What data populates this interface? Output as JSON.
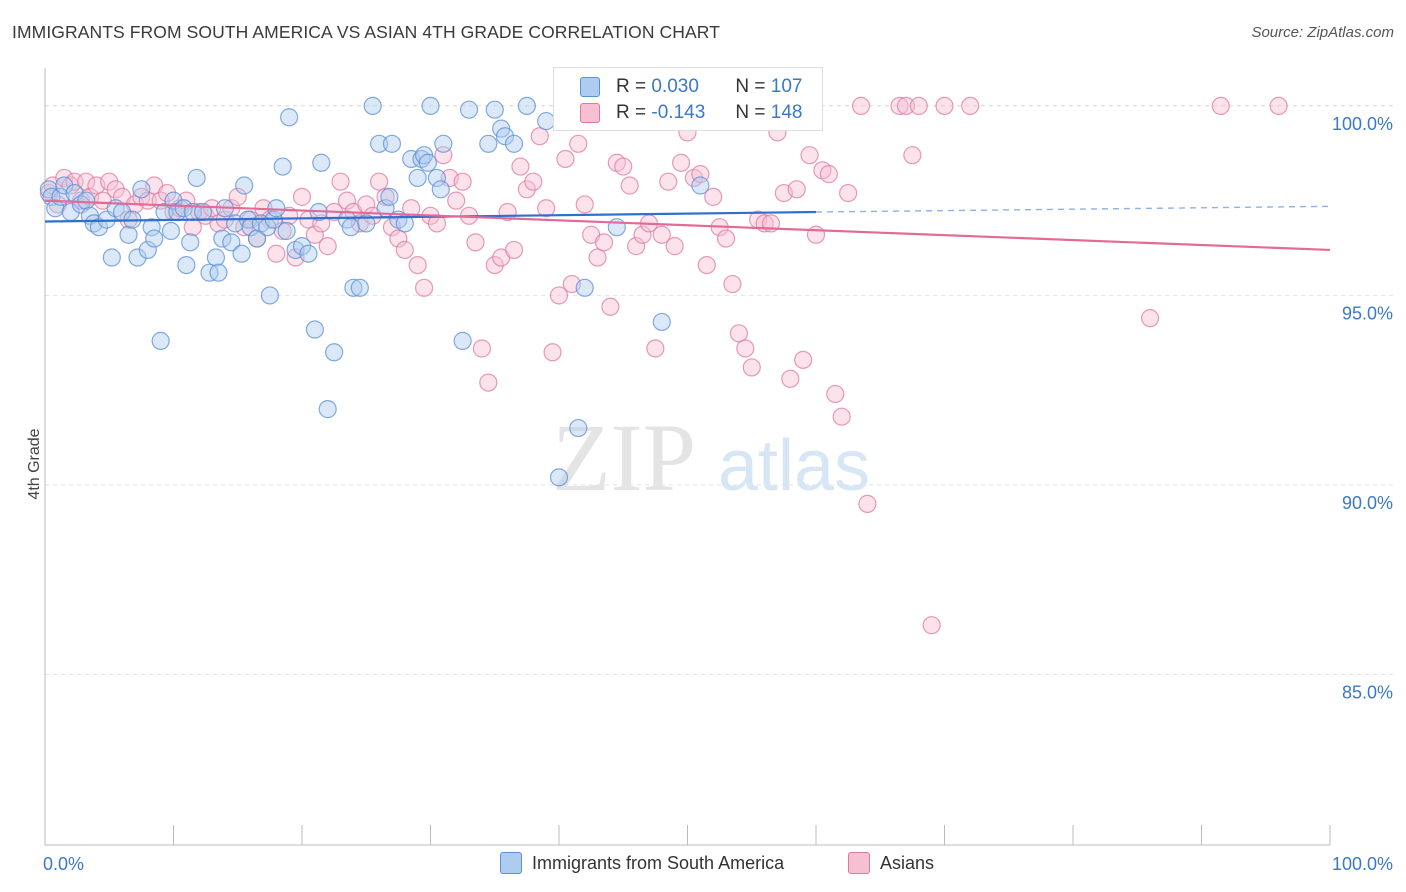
{
  "title": "IMMIGRANTS FROM SOUTH AMERICA VS ASIAN 4TH GRADE CORRELATION CHART",
  "source": "Source: ZipAtlas.com",
  "legend_top": {
    "rows": [
      {
        "r_label": "R =",
        "r_value": "0.030",
        "n_label": "N =",
        "n_value": "107",
        "color": "#5b8fd6",
        "fill": "#aecbf0"
      },
      {
        "r_label": "R =",
        "r_value": "-0.143",
        "n_label": "N =",
        "n_value": "148",
        "color": "#e07aa0",
        "fill": "#f6bfd2"
      }
    ]
  },
  "legend_bottom": [
    "Immigrants from South America",
    "Asians"
  ],
  "watermark": {
    "zip": "ZIP",
    "atlas": "atlas"
  },
  "chart_data": {
    "type": "scatter",
    "xlabel": "",
    "ylabel": "4th Grade",
    "xlim": [
      0,
      100
    ],
    "ylim": [
      80.5,
      101.0
    ],
    "x_tick_labels": [
      "0.0%",
      "100.0%"
    ],
    "y_ticks": [
      85.0,
      90.0,
      95.0,
      100.0
    ],
    "y_tick_labels": [
      "85.0%",
      "90.0%",
      "95.0%",
      "100.0%"
    ],
    "grid": true,
    "series": [
      {
        "name": "Immigrants from South America",
        "color": "#5b8fd6",
        "fill": "#aecbf0",
        "trend": {
          "x0": 0,
          "y0": 96.95,
          "x1": 60,
          "y1": 97.2,
          "dash_x1": 100,
          "dash_y1": 97.35
        },
        "points": [
          [
            0.3,
            97.8
          ],
          [
            0.5,
            97.6
          ],
          [
            0.8,
            97.3
          ],
          [
            1.2,
            97.6
          ],
          [
            1.5,
            97.9
          ],
          [
            2.0,
            97.2
          ],
          [
            2.3,
            97.7
          ],
          [
            2.8,
            97.4
          ],
          [
            3.2,
            97.5
          ],
          [
            3.5,
            97.1
          ],
          [
            3.8,
            96.9
          ],
          [
            4.2,
            96.8
          ],
          [
            4.8,
            97.0
          ],
          [
            5.2,
            96.0
          ],
          [
            5.5,
            97.3
          ],
          [
            6.0,
            97.2
          ],
          [
            6.5,
            96.6
          ],
          [
            6.8,
            97.0
          ],
          [
            7.2,
            96.0
          ],
          [
            7.5,
            97.8
          ],
          [
            8.0,
            96.2
          ],
          [
            8.3,
            96.8
          ],
          [
            8.5,
            96.5
          ],
          [
            9.0,
            93.8
          ],
          [
            9.3,
            97.2
          ],
          [
            9.8,
            96.7
          ],
          [
            10.0,
            97.5
          ],
          [
            10.3,
            97.2
          ],
          [
            10.8,
            97.3
          ],
          [
            11.0,
            95.8
          ],
          [
            11.3,
            96.4
          ],
          [
            11.5,
            97.2
          ],
          [
            11.8,
            98.1
          ],
          [
            12.3,
            97.2
          ],
          [
            12.8,
            95.6
          ],
          [
            13.3,
            96.0
          ],
          [
            13.5,
            95.6
          ],
          [
            13.8,
            96.5
          ],
          [
            14.0,
            97.3
          ],
          [
            14.5,
            96.4
          ],
          [
            14.8,
            96.9
          ],
          [
            15.3,
            96.1
          ],
          [
            15.5,
            97.9
          ],
          [
            15.8,
            97.0
          ],
          [
            16.0,
            96.8
          ],
          [
            16.5,
            96.5
          ],
          [
            16.8,
            96.9
          ],
          [
            17.3,
            96.8
          ],
          [
            17.5,
            95.0
          ],
          [
            17.8,
            97.0
          ],
          [
            18.0,
            97.3
          ],
          [
            18.5,
            98.4
          ],
          [
            18.8,
            96.7
          ],
          [
            19.0,
            99.7
          ],
          [
            19.5,
            96.2
          ],
          [
            20.0,
            96.3
          ],
          [
            20.5,
            96.1
          ],
          [
            21.0,
            94.1
          ],
          [
            21.3,
            97.2
          ],
          [
            21.5,
            98.5
          ],
          [
            22.0,
            92.0
          ],
          [
            22.5,
            93.5
          ],
          [
            23.5,
            97.0
          ],
          [
            23.8,
            96.8
          ],
          [
            24.0,
            95.2
          ],
          [
            24.5,
            95.2
          ],
          [
            25.0,
            96.9
          ],
          [
            25.5,
            100.0
          ],
          [
            26.0,
            99.0
          ],
          [
            26.5,
            97.3
          ],
          [
            26.8,
            97.6
          ],
          [
            27.0,
            99.0
          ],
          [
            27.5,
            97.0
          ],
          [
            28.0,
            96.9
          ],
          [
            28.5,
            98.6
          ],
          [
            29.0,
            98.1
          ],
          [
            29.3,
            98.6
          ],
          [
            29.5,
            98.7
          ],
          [
            29.8,
            98.5
          ],
          [
            30.0,
            100.0
          ],
          [
            30.5,
            98.1
          ],
          [
            30.8,
            97.8
          ],
          [
            31.0,
            99.0
          ],
          [
            32.5,
            93.8
          ],
          [
            33.0,
            99.9
          ],
          [
            34.5,
            99.0
          ],
          [
            35.0,
            99.9
          ],
          [
            35.5,
            99.4
          ],
          [
            35.8,
            99.2
          ],
          [
            36.5,
            99.0
          ],
          [
            37.5,
            100.0
          ],
          [
            39.0,
            99.6
          ],
          [
            40.0,
            90.2
          ],
          [
            41.5,
            91.5
          ],
          [
            42.0,
            95.2
          ],
          [
            44.5,
            96.8
          ],
          [
            48.0,
            94.3
          ],
          [
            51.0,
            97.9
          ]
        ]
      },
      {
        "name": "Asians",
        "color": "#e07aa0",
        "fill": "#f6bfd2",
        "trend": {
          "x0": 0,
          "y0": 97.5,
          "x1": 100,
          "y1": 96.2
        },
        "points": [
          [
            0.3,
            97.7
          ],
          [
            0.6,
            97.9
          ],
          [
            1.0,
            97.4
          ],
          [
            1.5,
            98.1
          ],
          [
            2.0,
            97.9
          ],
          [
            2.3,
            98.0
          ],
          [
            2.8,
            97.5
          ],
          [
            3.2,
            98.0
          ],
          [
            3.5,
            97.6
          ],
          [
            4.0,
            97.9
          ],
          [
            4.5,
            97.5
          ],
          [
            5.0,
            98.0
          ],
          [
            5.5,
            97.8
          ],
          [
            6.0,
            97.6
          ],
          [
            6.5,
            97.0
          ],
          [
            7.0,
            97.4
          ],
          [
            7.5,
            97.6
          ],
          [
            8.0,
            97.5
          ],
          [
            8.5,
            97.9
          ],
          [
            9.0,
            97.5
          ],
          [
            9.5,
            97.7
          ],
          [
            10.0,
            97.2
          ],
          [
            10.5,
            97.3
          ],
          [
            11.0,
            97.5
          ],
          [
            11.5,
            96.8
          ],
          [
            12.0,
            97.2
          ],
          [
            12.5,
            97.1
          ],
          [
            13.0,
            97.3
          ],
          [
            13.5,
            96.9
          ],
          [
            14.0,
            97.0
          ],
          [
            14.5,
            97.3
          ],
          [
            15.0,
            97.6
          ],
          [
            15.5,
            96.8
          ],
          [
            16.0,
            97.0
          ],
          [
            16.5,
            96.5
          ],
          [
            17.0,
            97.3
          ],
          [
            17.5,
            97.0
          ],
          [
            18.0,
            96.1
          ],
          [
            18.5,
            96.7
          ],
          [
            19.0,
            97.1
          ],
          [
            19.5,
            96.0
          ],
          [
            20.0,
            97.6
          ],
          [
            20.5,
            97.0
          ],
          [
            21.0,
            96.6
          ],
          [
            21.5,
            96.9
          ],
          [
            22.0,
            96.3
          ],
          [
            22.5,
            97.2
          ],
          [
            23.0,
            98.0
          ],
          [
            23.5,
            97.5
          ],
          [
            24.0,
            97.2
          ],
          [
            24.5,
            96.9
          ],
          [
            25.0,
            97.4
          ],
          [
            25.5,
            97.1
          ],
          [
            26.0,
            98.0
          ],
          [
            26.5,
            97.6
          ],
          [
            27.0,
            96.8
          ],
          [
            27.5,
            96.5
          ],
          [
            28.0,
            96.2
          ],
          [
            28.5,
            97.3
          ],
          [
            29.0,
            95.8
          ],
          [
            29.5,
            95.2
          ],
          [
            30.0,
            97.1
          ],
          [
            30.5,
            96.9
          ],
          [
            31.0,
            98.7
          ],
          [
            31.5,
            98.1
          ],
          [
            32.0,
            97.5
          ],
          [
            32.5,
            98.0
          ],
          [
            33.0,
            97.1
          ],
          [
            33.5,
            96.4
          ],
          [
            34.0,
            93.6
          ],
          [
            34.5,
            92.7
          ],
          [
            35.0,
            95.8
          ],
          [
            35.5,
            96.0
          ],
          [
            36.0,
            97.2
          ],
          [
            36.5,
            96.2
          ],
          [
            37.0,
            98.4
          ],
          [
            37.5,
            97.8
          ],
          [
            38.0,
            98.0
          ],
          [
            38.5,
            99.2
          ],
          [
            39.0,
            97.3
          ],
          [
            39.5,
            93.5
          ],
          [
            40.0,
            95.0
          ],
          [
            40.5,
            98.6
          ],
          [
            41.0,
            95.3
          ],
          [
            41.5,
            99.0
          ],
          [
            42.0,
            97.4
          ],
          [
            42.5,
            96.6
          ],
          [
            43.0,
            96.0
          ],
          [
            43.5,
            96.4
          ],
          [
            44.0,
            94.7
          ],
          [
            44.5,
            98.5
          ],
          [
            45.0,
            98.4
          ],
          [
            45.5,
            97.9
          ],
          [
            46.0,
            96.3
          ],
          [
            46.5,
            96.6
          ],
          [
            47.0,
            96.9
          ],
          [
            47.5,
            93.6
          ],
          [
            48.0,
            96.6
          ],
          [
            48.5,
            98.0
          ],
          [
            49.0,
            96.3
          ],
          [
            49.5,
            98.5
          ],
          [
            50.0,
            99.3
          ],
          [
            50.5,
            98.1
          ],
          [
            51.0,
            98.2
          ],
          [
            51.5,
            95.8
          ],
          [
            52.0,
            97.6
          ],
          [
            52.5,
            96.8
          ],
          [
            53.0,
            96.5
          ],
          [
            53.5,
            95.3
          ],
          [
            54.0,
            94.0
          ],
          [
            54.5,
            93.6
          ],
          [
            55.0,
            93.1
          ],
          [
            55.5,
            97.0
          ],
          [
            56.0,
            96.9
          ],
          [
            56.5,
            96.9
          ],
          [
            57.0,
            99.3
          ],
          [
            57.5,
            97.7
          ],
          [
            58.0,
            92.8
          ],
          [
            58.5,
            97.8
          ],
          [
            59.0,
            93.3
          ],
          [
            59.5,
            98.7
          ],
          [
            60.0,
            96.6
          ],
          [
            60.5,
            98.3
          ],
          [
            61.0,
            98.2
          ],
          [
            61.5,
            92.4
          ],
          [
            62.0,
            91.8
          ],
          [
            62.5,
            97.7
          ],
          [
            63.5,
            100.0
          ],
          [
            64.0,
            89.5
          ],
          [
            66.5,
            100.0
          ],
          [
            67.0,
            100.0
          ],
          [
            67.5,
            98.7
          ],
          [
            68.0,
            100.0
          ],
          [
            69.0,
            86.3
          ],
          [
            70.0,
            100.0
          ],
          [
            72.0,
            100.0
          ],
          [
            86.0,
            94.4
          ],
          [
            91.5,
            100.0
          ],
          [
            96.0,
            100.0
          ]
        ]
      }
    ]
  }
}
